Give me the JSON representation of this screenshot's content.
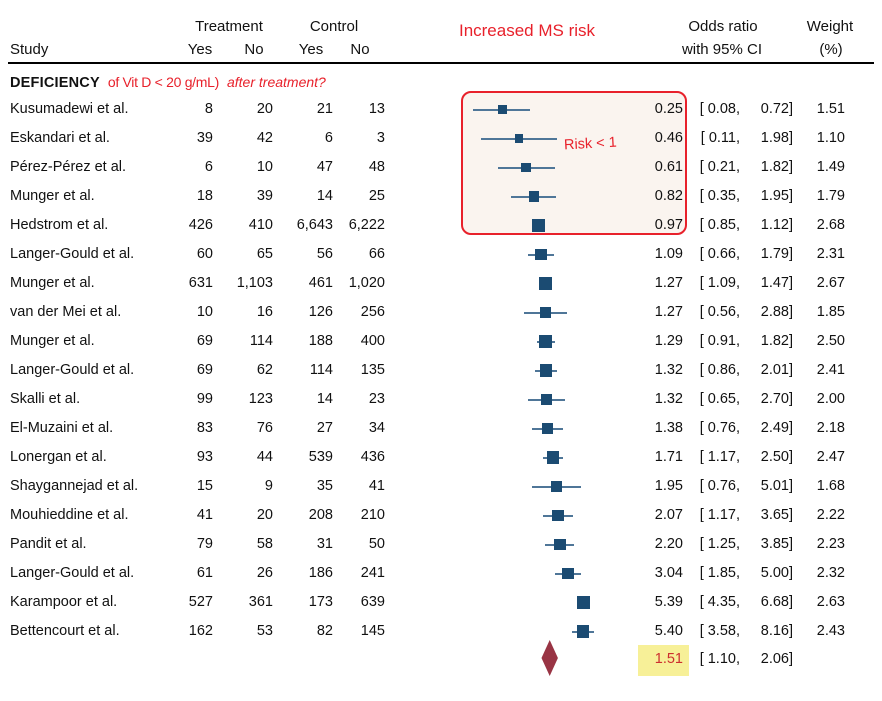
{
  "header": {
    "study": "Study",
    "treatment": "Treatment",
    "control": "Control",
    "treatment_yes": "Yes",
    "treatment_no": "No",
    "control_yes": "Yes",
    "control_no": "No",
    "plot_title": "Increased MS risk",
    "or_line1": "Odds ratio",
    "or_line2": "with 95% CI",
    "weight_line1": "Weight",
    "weight_line2": "(%)"
  },
  "subgroup": {
    "label_bold": "DEFICIENCY",
    "label_red": "of Vit D < 20 g/mL)",
    "label_red_italic": "after treatment?"
  },
  "annotations": {
    "risk_label": "Risk < 1"
  },
  "colors": {
    "accent_red": "#e8212b",
    "marker_navy": "#1b4b72",
    "whisker_blue": "#4f7698",
    "diamond_maroon": "#993444",
    "highlight_yellow": "#f7f098",
    "riskbox_fill": "#faf4ef"
  },
  "chart_data": {
    "type": "forest",
    "x_scale": "log",
    "reference_line": 1,
    "columns": [
      "Study",
      "Treatment Yes",
      "Treatment No",
      "Control Yes",
      "Control No",
      "Odds ratio with 95% CI",
      "Weight (%)"
    ],
    "studies": [
      {
        "study": "Kusumadewi et al.",
        "t_yes": "8",
        "t_no": "20",
        "c_yes": "21",
        "c_no": "13",
        "or": 0.25,
        "lo": 0.08,
        "hi": 0.72,
        "weight": 1.51
      },
      {
        "study": "Eskandari et al.",
        "t_yes": "39",
        "t_no": "42",
        "c_yes": "6",
        "c_no": "3",
        "or": 0.46,
        "lo": 0.11,
        "hi": 1.98,
        "weight": 1.1
      },
      {
        "study": "Pérez-Pérez et al.",
        "t_yes": "6",
        "t_no": "10",
        "c_yes": "47",
        "c_no": "48",
        "or": 0.61,
        "lo": 0.21,
        "hi": 1.82,
        "weight": 1.49
      },
      {
        "study": "Munger et al.",
        "t_yes": "18",
        "t_no": "39",
        "c_yes": "14",
        "c_no": "25",
        "or": 0.82,
        "lo": 0.35,
        "hi": 1.95,
        "weight": 1.79
      },
      {
        "study": "Hedstrom et al.",
        "t_yes": "426",
        "t_no": "410",
        "c_yes": "6,643",
        "c_no": "6,222",
        "or": 0.97,
        "lo": 0.85,
        "hi": 1.12,
        "weight": 2.68
      },
      {
        "study": "Langer-Gould et al.",
        "t_yes": "60",
        "t_no": "65",
        "c_yes": "56",
        "c_no": "66",
        "or": 1.09,
        "lo": 0.66,
        "hi": 1.79,
        "weight": 2.31
      },
      {
        "study": "Munger et al.",
        "t_yes": "631",
        "t_no": "1,103",
        "c_yes": "461",
        "c_no": "1,020",
        "or": 1.27,
        "lo": 1.09,
        "hi": 1.47,
        "weight": 2.67
      },
      {
        "study": "van der Mei et al.",
        "t_yes": "10",
        "t_no": "16",
        "c_yes": "126",
        "c_no": "256",
        "or": 1.27,
        "lo": 0.56,
        "hi": 2.88,
        "weight": 1.85
      },
      {
        "study": "Munger et al.",
        "t_yes": "69",
        "t_no": "114",
        "c_yes": "188",
        "c_no": "400",
        "or": 1.29,
        "lo": 0.91,
        "hi": 1.82,
        "weight": 2.5
      },
      {
        "study": "Langer-Gould et al.",
        "t_yes": "69",
        "t_no": "62",
        "c_yes": "114",
        "c_no": "135",
        "or": 1.32,
        "lo": 0.86,
        "hi": 2.01,
        "weight": 2.41
      },
      {
        "study": "Skalli et al.",
        "t_yes": "99",
        "t_no": "123",
        "c_yes": "14",
        "c_no": "23",
        "or": 1.32,
        "lo": 0.65,
        "hi": 2.7,
        "weight": 2.0
      },
      {
        "study": "El-Muzaini et al.",
        "t_yes": "83",
        "t_no": "76",
        "c_yes": "27",
        "c_no": "34",
        "or": 1.38,
        "lo": 0.76,
        "hi": 2.49,
        "weight": 2.18
      },
      {
        "study": "Lonergan et al.",
        "t_yes": "93",
        "t_no": "44",
        "c_yes": "539",
        "c_no": "436",
        "or": 1.71,
        "lo": 1.17,
        "hi": 2.5,
        "weight": 2.47
      },
      {
        "study": "Shaygannejad et al.",
        "t_yes": "15",
        "t_no": "9",
        "c_yes": "35",
        "c_no": "41",
        "or": 1.95,
        "lo": 0.76,
        "hi": 5.01,
        "weight": 1.68
      },
      {
        "study": "Mouhieddine et al.",
        "t_yes": "41",
        "t_no": "20",
        "c_yes": "208",
        "c_no": "210",
        "or": 2.07,
        "lo": 1.17,
        "hi": 3.65,
        "weight": 2.22
      },
      {
        "study": "Pandit et al.",
        "t_yes": "79",
        "t_no": "58",
        "c_yes": "31",
        "c_no": "50",
        "or": 2.2,
        "lo": 1.25,
        "hi": 3.85,
        "weight": 2.23
      },
      {
        "study": "Langer-Gould et al.",
        "t_yes": "61",
        "t_no": "26",
        "c_yes": "186",
        "c_no": "241",
        "or": 3.04,
        "lo": 1.85,
        "hi": 5.0,
        "weight": 2.32
      },
      {
        "study": "Karampoor et al.",
        "t_yes": "527",
        "t_no": "361",
        "c_yes": "173",
        "c_no": "639",
        "or": 5.39,
        "lo": 4.35,
        "hi": 6.68,
        "weight": 2.63
      },
      {
        "study": "Bettencourt et al.",
        "t_yes": "162",
        "t_no": "53",
        "c_yes": "82",
        "c_no": "145",
        "or": 5.4,
        "lo": 3.58,
        "hi": 8.16,
        "weight": 2.43
      }
    ],
    "summary": {
      "or": 1.51,
      "lo": 1.1,
      "hi": 2.06
    }
  }
}
